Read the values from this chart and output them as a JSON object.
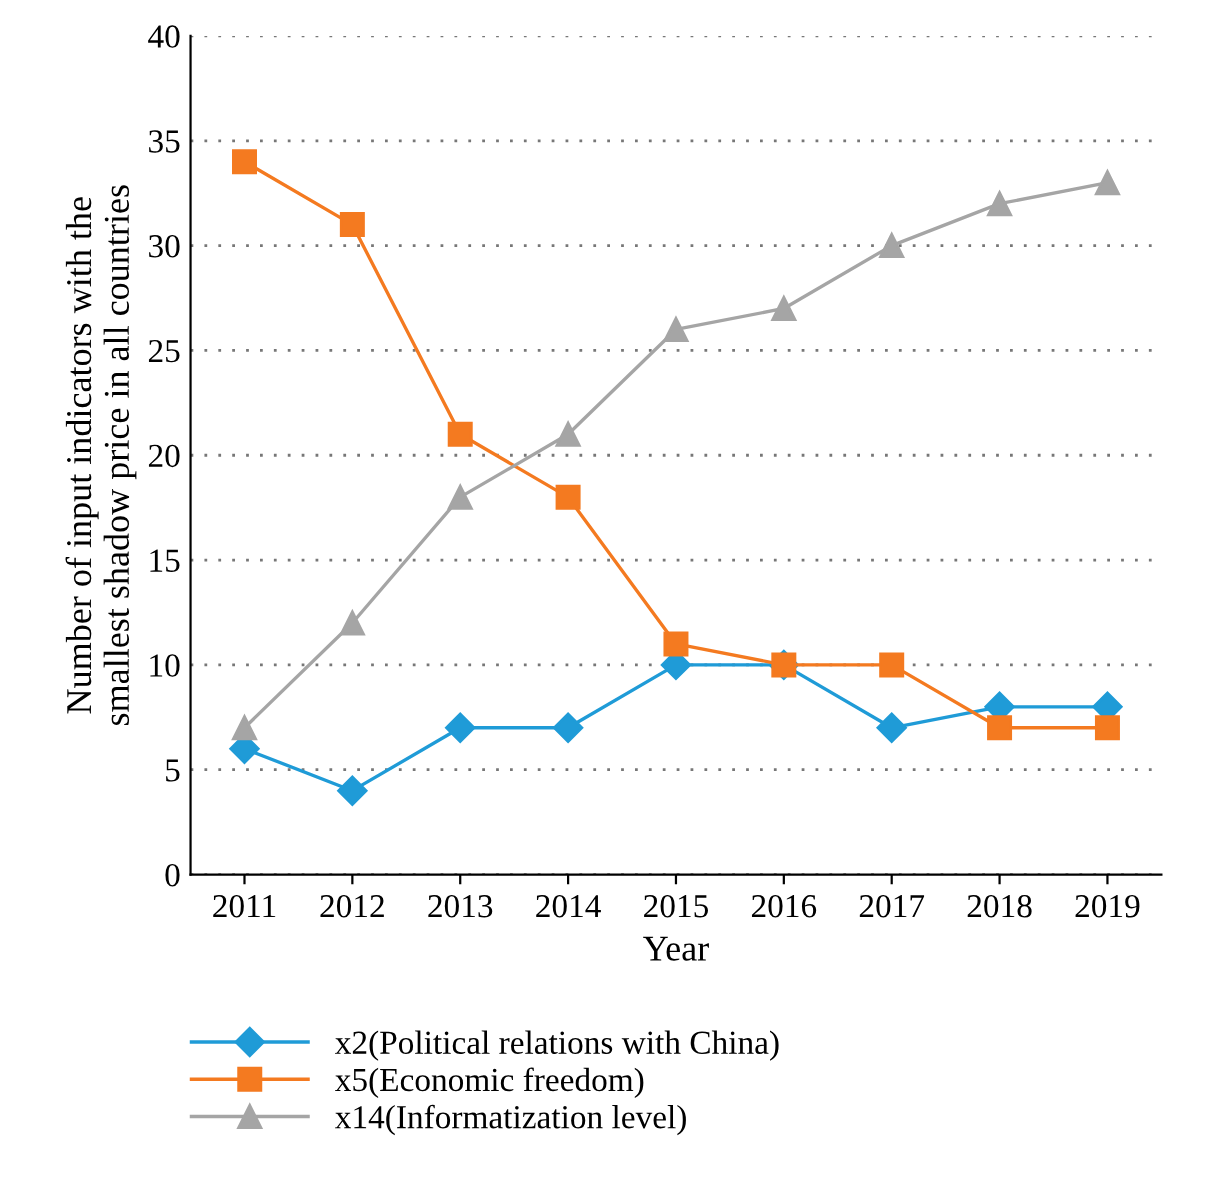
{
  "chart_data": {
    "type": "line",
    "xlabel": "Year",
    "ylabel": "Number of input indicators with the\nsmallest shadow price in all countries",
    "categories": [
      "2011",
      "2012",
      "2013",
      "2014",
      "2015",
      "2016",
      "2017",
      "2018",
      "2019"
    ],
    "series": [
      {
        "name": "x2(Political relations with China)",
        "color": "#1f9bd7",
        "marker": "diamond",
        "values": [
          6,
          4,
          7,
          7,
          10,
          10,
          7,
          8,
          8
        ]
      },
      {
        "name": "x5(Economic freedom)",
        "color": "#f47a20",
        "marker": "square",
        "values": [
          34,
          31,
          21,
          18,
          11,
          10,
          10,
          7,
          7
        ]
      },
      {
        "name": "x14(Informatization level)",
        "color": "#a5a5a5",
        "marker": "triangle",
        "values": [
          7,
          12,
          18,
          21,
          26,
          27,
          30,
          32,
          33
        ]
      }
    ],
    "ylim": [
      0,
      40
    ],
    "yticks": [
      0,
      5,
      10,
      15,
      20,
      25,
      30,
      35,
      40
    ],
    "grid": "y",
    "legend": "bottom",
    "line_style": "solid"
  }
}
